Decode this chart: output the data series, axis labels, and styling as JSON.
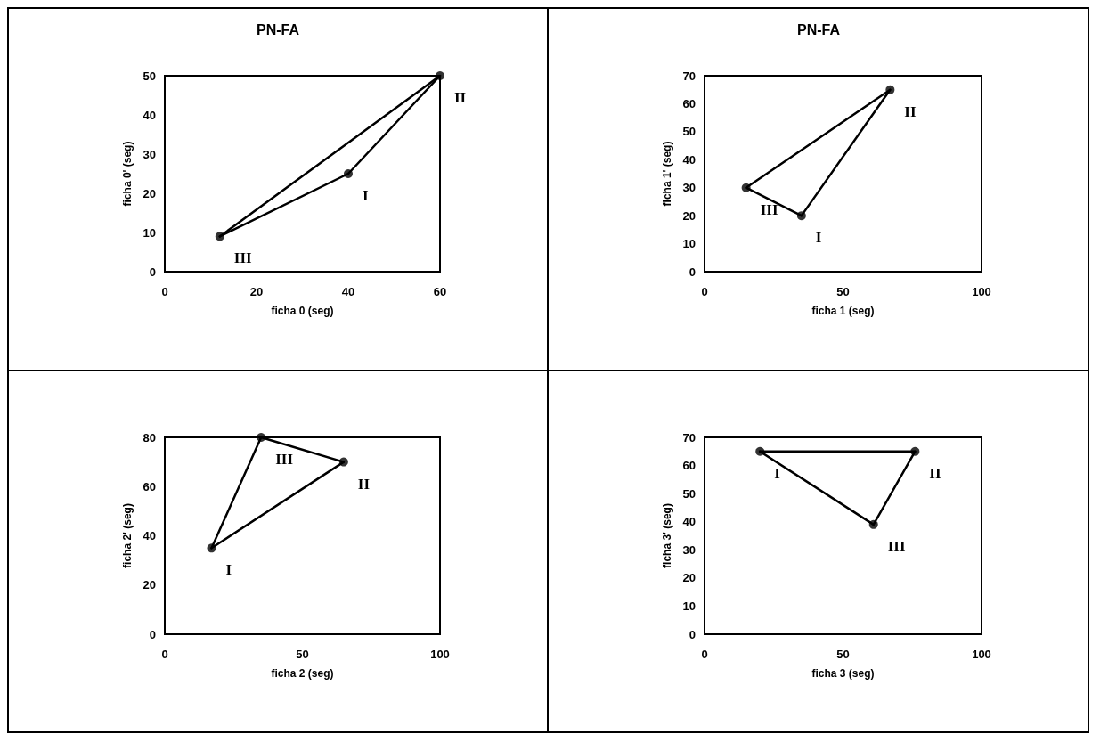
{
  "chart_data": [
    {
      "type": "line",
      "title": "PN-FA",
      "xlabel": "ficha 0 (seg)",
      "ylabel": "ficha 0' (seg)",
      "series": [
        {
          "type": "scatter",
          "color": "#000000",
          "marker": "circle",
          "x": [
            40,
            60,
            12
          ],
          "values": [
            25,
            50,
            9
          ]
        },
        {
          "color": "#000000",
          "x": [
            12,
            40
          ],
          "values": [
            9,
            25
          ]
        },
        {
          "color": "#000000",
          "x": [
            40,
            60
          ],
          "values": [
            25,
            50
          ]
        },
        {
          "color": "#000000",
          "x": [
            12,
            60
          ],
          "values": [
            9,
            50
          ]
        }
      ],
      "xlim": [
        0,
        60
      ],
      "xticks": [
        0,
        20,
        40,
        60
      ],
      "ylim": [
        0,
        50
      ],
      "yticks": [
        0,
        10,
        20,
        30,
        40,
        50
      ],
      "grid": false,
      "marker": "none",
      "line_style": "solid",
      "annotations": [
        {
          "text": "I",
          "x": 40,
          "y": 25
        },
        {
          "text": "II",
          "x": 60,
          "y": 50
        },
        {
          "text": "III",
          "x": 12,
          "y": 9
        }
      ]
    },
    {
      "type": "line",
      "title": "PN-FA",
      "xlabel": "ficha 1 (seg)",
      "ylabel": "ficha 1' (seg)",
      "series": [
        {
          "type": "scatter",
          "color": "#000000",
          "marker": "circle",
          "x": [
            35,
            67,
            15
          ],
          "values": [
            20,
            65,
            30
          ]
        },
        {
          "color": "#000000",
          "x": [
            35,
            67
          ],
          "values": [
            20,
            65
          ]
        },
        {
          "color": "#000000",
          "x": [
            15,
            67
          ],
          "values": [
            30,
            65
          ]
        },
        {
          "color": "#000000",
          "x": [
            15,
            35
          ],
          "values": [
            30,
            20
          ]
        }
      ],
      "xlim": [
        0,
        100
      ],
      "xticks": [
        0,
        50,
        100
      ],
      "ylim": [
        0,
        70
      ],
      "yticks": [
        0,
        10,
        20,
        30,
        40,
        50,
        60,
        70
      ],
      "grid": false,
      "marker": "none",
      "line_style": "solid",
      "annotations": [
        {
          "text": "I",
          "x": 35,
          "y": 20
        },
        {
          "text": "II",
          "x": 67,
          "y": 65
        },
        {
          "text": "III",
          "x": 15,
          "y": 30
        }
      ]
    },
    {
      "type": "line",
      "xlabel": "ficha 2 (seg)",
      "ylabel": "ficha 2' (seg)",
      "series": [
        {
          "type": "scatter",
          "color": "#000000",
          "marker": "circle",
          "x": [
            17,
            65,
            35
          ],
          "values": [
            35,
            70,
            80
          ]
        },
        {
          "color": "#000000",
          "x": [
            17,
            65
          ],
          "values": [
            35,
            70
          ]
        },
        {
          "color": "#000000",
          "x": [
            35,
            65
          ],
          "values": [
            80,
            70
          ]
        },
        {
          "color": "#000000",
          "x": [
            17,
            35
          ],
          "values": [
            35,
            80
          ]
        }
      ],
      "xlim": [
        0,
        100
      ],
      "xticks": [
        0,
        50,
        100
      ],
      "ylim": [
        0,
        80
      ],
      "yticks": [
        0,
        20,
        40,
        60,
        80
      ],
      "grid": false,
      "marker": "none",
      "line_style": "solid",
      "annotations": [
        {
          "text": "I",
          "x": 17,
          "y": 35
        },
        {
          "text": "II",
          "x": 65,
          "y": 70
        },
        {
          "text": "III",
          "x": 35,
          "y": 80
        }
      ]
    },
    {
      "type": "line",
      "xlabel": "ficha 3 (seg)",
      "ylabel": "ficha 3' (seg)",
      "series": [
        {
          "type": "scatter",
          "color": "#000000",
          "marker": "circle",
          "x": [
            20,
            76,
            61
          ],
          "values": [
            65,
            65,
            39
          ]
        },
        {
          "color": "#000000",
          "x": [
            20,
            76
          ],
          "values": [
            65,
            65
          ]
        },
        {
          "color": "#000000",
          "x": [
            61,
            76
          ],
          "values": [
            39,
            65
          ]
        },
        {
          "color": "#000000",
          "x": [
            20,
            61
          ],
          "values": [
            65,
            39
          ]
        }
      ],
      "xlim": [
        0,
        100
      ],
      "xticks": [
        0,
        50,
        100
      ],
      "ylim": [
        0,
        70
      ],
      "yticks": [
        0,
        10,
        20,
        30,
        40,
        50,
        60,
        70
      ],
      "grid": false,
      "marker": "none",
      "line_style": "solid",
      "annotations": [
        {
          "text": "I",
          "x": 20,
          "y": 65
        },
        {
          "text": "II",
          "x": 76,
          "y": 65
        },
        {
          "text": "III",
          "x": 61,
          "y": 39
        }
      ]
    }
  ]
}
